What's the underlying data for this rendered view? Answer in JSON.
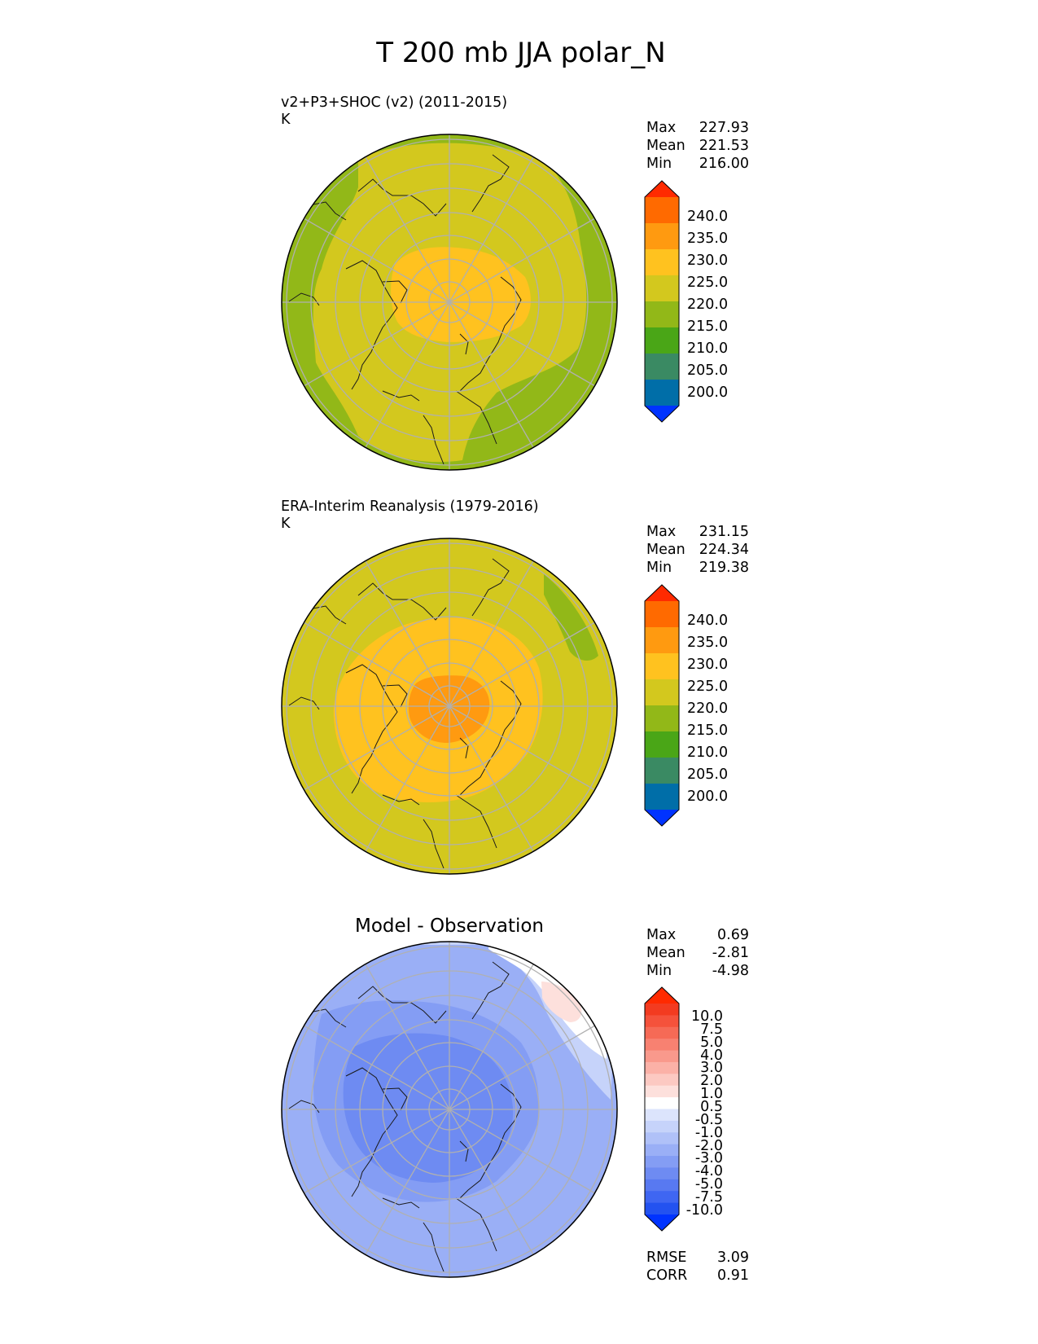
{
  "title": "T 200 mb JJA polar_N",
  "colors": {
    "ocean_land_outline": "#1a1a1a",
    "grid": "#b0b0b0",
    "abs_levels": [
      "#0033ff",
      "#006ea8",
      "#3a8a63",
      "#4aa617",
      "#92b818",
      "#d3c81e",
      "#ffc21f",
      "#ff9a10",
      "#ff6a00",
      "#ff2a00"
    ],
    "diff_levels": [
      "#0033ff",
      "#2352f0",
      "#3f66f2",
      "#5879f1",
      "#6e8bf2",
      "#849df4",
      "#9aaff6",
      "#b0c1f8",
      "#c6d3fa",
      "#dce4fc",
      "#ffffff",
      "#fde0dc",
      "#fcc9c2",
      "#fbb1a7",
      "#f9998c",
      "#f88171",
      "#f66a56",
      "#f5523b",
      "#f33b20",
      "#ff2a00"
    ]
  },
  "panels": [
    {
      "id": "test",
      "heading": "v2+P3+SHOC (v2) (2011-2015)",
      "units": "K",
      "stats": [
        {
          "label": "Max",
          "value": "227.93"
        },
        {
          "label": "Mean",
          "value": "221.53"
        },
        {
          "label": "Min",
          "value": "216.00"
        }
      ],
      "colorbar_ticks": [
        "240.0",
        "235.0",
        "230.0",
        "225.0",
        "220.0",
        "215.0",
        "210.0",
        "205.0",
        "200.0"
      ]
    },
    {
      "id": "reference",
      "heading": "ERA-Interim Reanalysis (1979-2016)",
      "units": "K",
      "stats": [
        {
          "label": "Max",
          "value": "231.15"
        },
        {
          "label": "Mean",
          "value": "224.34"
        },
        {
          "label": "Min",
          "value": "219.38"
        }
      ],
      "colorbar_ticks": [
        "240.0",
        "235.0",
        "230.0",
        "225.0",
        "220.0",
        "215.0",
        "210.0",
        "205.0",
        "200.0"
      ]
    },
    {
      "id": "difference",
      "heading": "Model - Observation",
      "units": "",
      "stats": [
        {
          "label": "Max",
          "value": "0.69"
        },
        {
          "label": "Mean",
          "value": "-2.81"
        },
        {
          "label": "Min",
          "value": "-4.98"
        }
      ],
      "colorbar_ticks": [
        "10.0",
        "7.5",
        "5.0",
        "4.0",
        "3.0",
        "2.0",
        "1.0",
        "0.5",
        "-0.5",
        "-1.0",
        "-2.0",
        "-3.0",
        "-4.0",
        "-5.0",
        "-7.5",
        "-10.0"
      ],
      "metrics": [
        {
          "label": "RMSE",
          "value": "3.09"
        },
        {
          "label": "CORR",
          "value": "0.91"
        }
      ]
    }
  ]
}
